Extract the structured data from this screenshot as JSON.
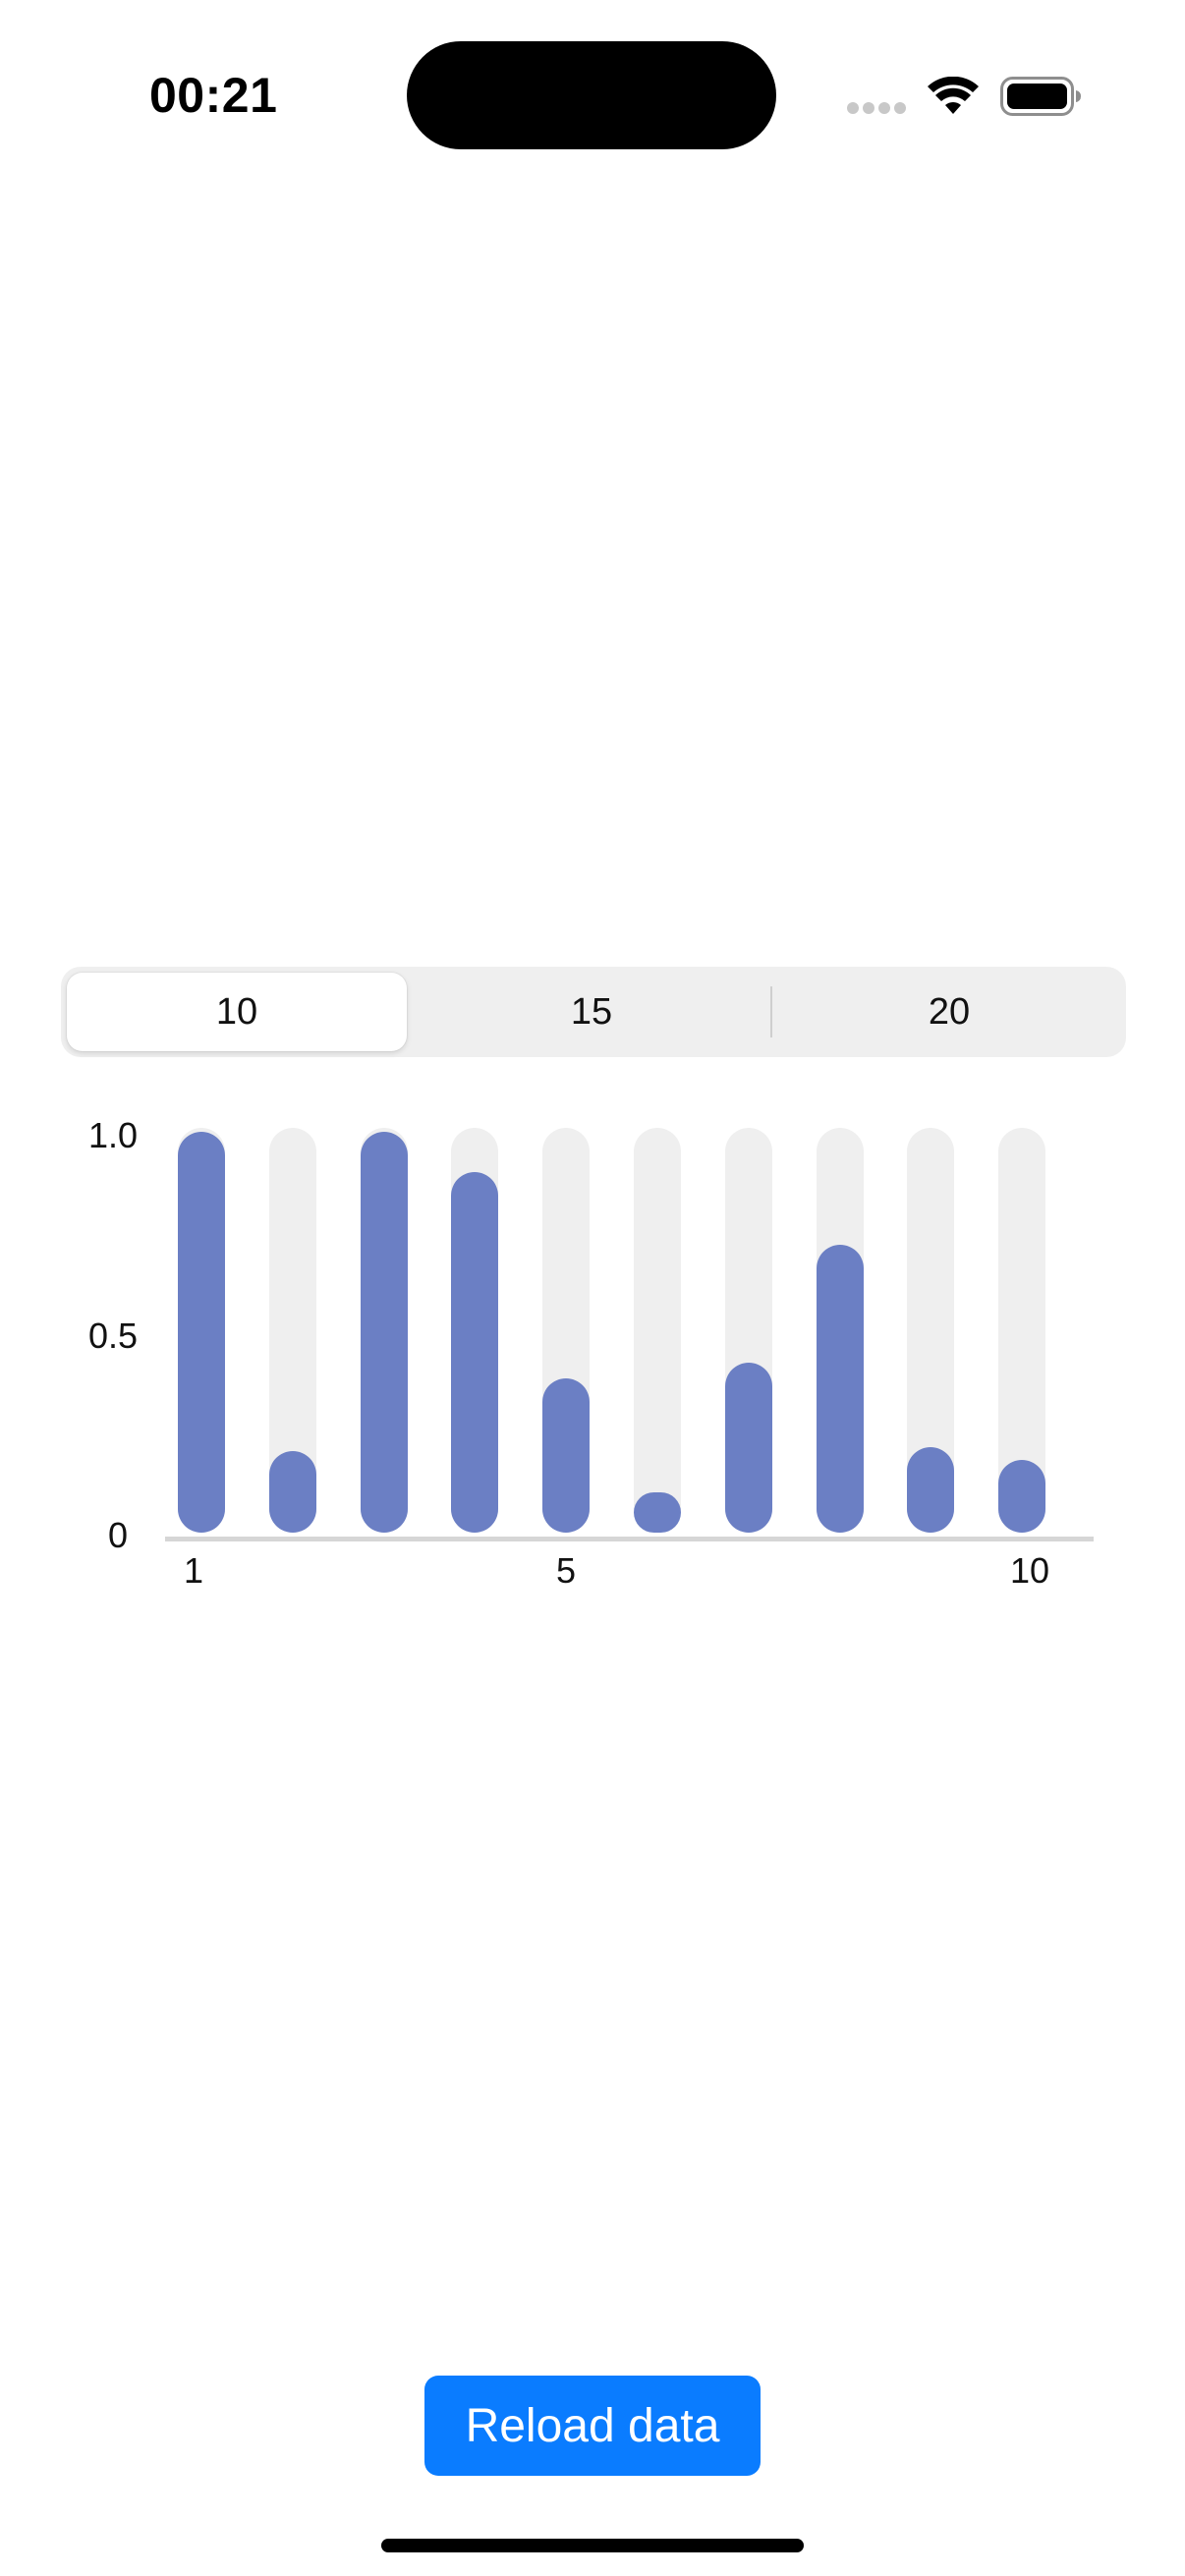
{
  "status_bar": {
    "time": "00:21",
    "icons": [
      "cellular-signal-icon",
      "wifi-icon",
      "battery-icon"
    ]
  },
  "segmented_control": {
    "options": [
      "10",
      "15",
      "20"
    ],
    "selected": "10"
  },
  "chart_data": {
    "type": "bar",
    "categories": [
      "1",
      "2",
      "3",
      "4",
      "5",
      "6",
      "7",
      "8",
      "9",
      "10"
    ],
    "values": [
      1.0,
      0.21,
      1.0,
      0.9,
      0.39,
      0.11,
      0.43,
      0.72,
      0.22,
      0.19
    ],
    "x_tick_labels": [
      {
        "category": "1",
        "label": "1"
      },
      {
        "category": "5",
        "label": "5"
      },
      {
        "category": "10",
        "label": "10"
      }
    ],
    "y_tick_labels": [
      {
        "value": 1.0,
        "label": "1.0"
      },
      {
        "value": 0.5,
        "label": "0.5"
      },
      {
        "value": 0,
        "label": "0"
      }
    ],
    "ylim": [
      0,
      1.0
    ],
    "title": "",
    "xlabel": "",
    "ylabel": "",
    "colors": {
      "bar": "#6b7fc4",
      "track": "#efefef",
      "axis": "#d6d6d6"
    }
  },
  "actions": {
    "reload_label": "Reload data"
  },
  "colors": {
    "button_background": "#0a7cff",
    "button_text": "#ffffff"
  }
}
